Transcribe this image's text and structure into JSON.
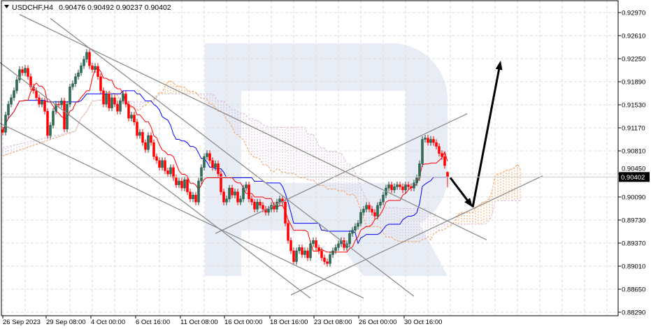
{
  "header": {
    "symbol": "USDCHF,H4",
    "ohlc": "0.90476 0.90492 0.90237 0.90402"
  },
  "chart_data": {
    "type": "candlestick",
    "symbol": "USDCHF",
    "timeframe": "H4",
    "last_bar": {
      "open": 0.90476,
      "high": 0.90492,
      "low": 0.90237,
      "close": 0.90402
    },
    "current_price_label": "0.90402",
    "ylim": [
      0.8829,
      0.9297
    ],
    "y_ticks": [
      "0.92970",
      "0.92610",
      "0.92250",
      "0.91890",
      "0.91530",
      "0.91170",
      "0.90810",
      "0.90450",
      "0.90090",
      "0.89730",
      "0.89370",
      "0.89010",
      "0.88650",
      "0.88290"
    ],
    "x_ticks": [
      "26 Sep 2023",
      "29 Sep 08:00",
      "4 Oct 00:00",
      "6 Oct 16:00",
      "11 Oct 08:00",
      "16 Oct 00:00",
      "18 Oct 16:00",
      "23 Oct 08:00",
      "26 Oct 00:00",
      "30 Oct 16:00"
    ],
    "grid": true,
    "closes": [
      0.911,
      0.9137,
      0.9154,
      0.9164,
      0.9175,
      0.9192,
      0.9208,
      0.9203,
      0.921,
      0.9197,
      0.9181,
      0.9175,
      0.9164,
      0.9154,
      0.9159,
      0.9143,
      0.9105,
      0.9121,
      0.9143,
      0.9154,
      0.9153,
      0.9159,
      0.9115,
      0.9154,
      0.9181,
      0.9186,
      0.9197,
      0.9203,
      0.9214,
      0.9224,
      0.9235,
      0.9214,
      0.9208,
      0.9213,
      0.9197,
      0.9175,
      0.9154,
      0.917,
      0.9148,
      0.9164,
      0.9154,
      0.9143,
      0.9159,
      0.917,
      0.9154,
      0.9132,
      0.9137,
      0.9126,
      0.9105,
      0.911,
      0.9094,
      0.9083,
      0.9105,
      0.9094,
      0.9072,
      0.9066,
      0.9055,
      0.9066,
      0.905,
      0.9045,
      0.9055,
      0.9039,
      0.9028,
      0.9034,
      0.9023,
      0.9036,
      0.9017,
      0.9006,
      0.9012,
      0.9001,
      0.9034,
      0.9055,
      0.9072,
      0.9077,
      0.9066,
      0.9055,
      0.9061,
      0.9045,
      0.9017,
      0.9001,
      0.9006,
      0.9023,
      0.9012,
      0.9017,
      0.9001,
      0.9006,
      0.9023,
      0.9028,
      0.9006,
      0.9001,
      0.899,
      0.9001,
      0.8996,
      0.899,
      0.8985,
      0.899,
      0.8996,
      0.899,
      0.9001,
      0.9006,
      0.9001,
      0.8968,
      0.8941,
      0.8925,
      0.8908,
      0.8925,
      0.893,
      0.8919,
      0.8925,
      0.8914,
      0.8936,
      0.8941,
      0.893,
      0.8925,
      0.8914,
      0.8908,
      0.8905,
      0.8919,
      0.8925,
      0.893,
      0.8936,
      0.8941,
      0.893,
      0.8936,
      0.8952,
      0.8957,
      0.8963,
      0.8968,
      0.8985,
      0.899,
      0.8996,
      0.899,
      0.8985,
      0.8979,
      0.8996,
      0.9001,
      0.9012,
      0.9023,
      0.9028,
      0.902,
      0.9025,
      0.9028,
      0.9025,
      0.902,
      0.9028,
      0.9025,
      0.9023,
      0.9031,
      0.9039,
      0.9061,
      0.9099,
      0.9101,
      0.9094,
      0.9099,
      0.9094,
      0.9088,
      0.9077,
      0.9072,
      0.9058,
      0.90476
    ],
    "indicators": {
      "ichimoku": {
        "tenkan": 9,
        "kijun": 26,
        "senkou_b": 52,
        "tenkan_color": "#ff0000",
        "kijun_color": "#0000ff",
        "senkou_a_color": "#f4a460",
        "senkou_b_color": "#d8bfd8"
      }
    },
    "trendlines": [
      {
        "from": {
          "bar": 6,
          "price": 0.9294
        },
        "to": {
          "bar": 173,
          "price": 0.8942
        }
      },
      {
        "from": {
          "bar": 17,
          "price": 0.9288
        },
        "to": {
          "bar": 147,
          "price": 0.8854
        }
      },
      {
        "from": {
          "bar": -1,
          "price": 0.9219
        },
        "to": {
          "bar": 110,
          "price": 0.8851
        }
      },
      {
        "from": {
          "bar": -1,
          "price": 0.9124
        },
        "to": {
          "bar": 129,
          "price": 0.8851
        }
      },
      {
        "from": {
          "bar": 76,
          "price": 0.8952
        },
        "to": {
          "bar": 166,
          "price": 0.9139
        }
      },
      {
        "from": {
          "bar": 103,
          "price": 0.8856
        },
        "to": {
          "bar": 193,
          "price": 0.9042
        }
      }
    ],
    "forecast_arrows": [
      {
        "from": {
          "bar": 160,
          "price": 0.9039
        },
        "to": {
          "bar": 168,
          "price": 0.8993
        }
      },
      {
        "from": {
          "bar": 168,
          "price": 0.8993
        },
        "to": {
          "bar": 178,
          "price": 0.9222
        }
      }
    ],
    "colors": {
      "bull": "#2e6e58",
      "bear": "#ff0000",
      "trendline": "#8c8c8c",
      "arrow": "#000000",
      "watermark": "#e8edf5"
    }
  }
}
